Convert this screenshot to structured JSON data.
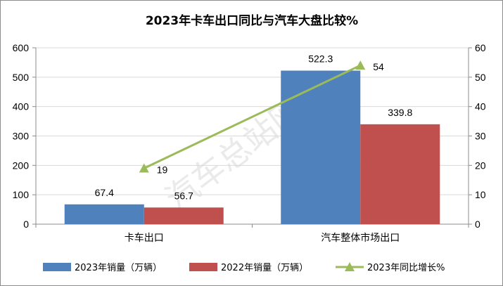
{
  "watermark": "汽车总站网",
  "chart_data": {
    "type": "bar",
    "title": "2023年卡车出口同比与汽车大盘比较%",
    "categories": [
      "卡车出口",
      "汽车整体市场出口"
    ],
    "y_left": {
      "min": 0,
      "max": 600,
      "step": 100
    },
    "y_right": {
      "min": 0,
      "max": 60,
      "step": 10
    },
    "grid": true,
    "legend_position": "bottom",
    "series": [
      {
        "name": "2023年销量（万辆）",
        "type": "bar",
        "axis": "left",
        "color": "#4f81bd",
        "values": [
          67.4,
          522.3
        ]
      },
      {
        "name": "2022年销量（万辆）",
        "type": "bar",
        "axis": "left",
        "color": "#c0504d",
        "values": [
          56.7,
          339.8
        ]
      },
      {
        "name": "2023年同比增长%",
        "type": "line",
        "axis": "right",
        "color": "#9bbb59",
        "marker": "triangle",
        "values": [
          19,
          54
        ]
      }
    ]
  }
}
